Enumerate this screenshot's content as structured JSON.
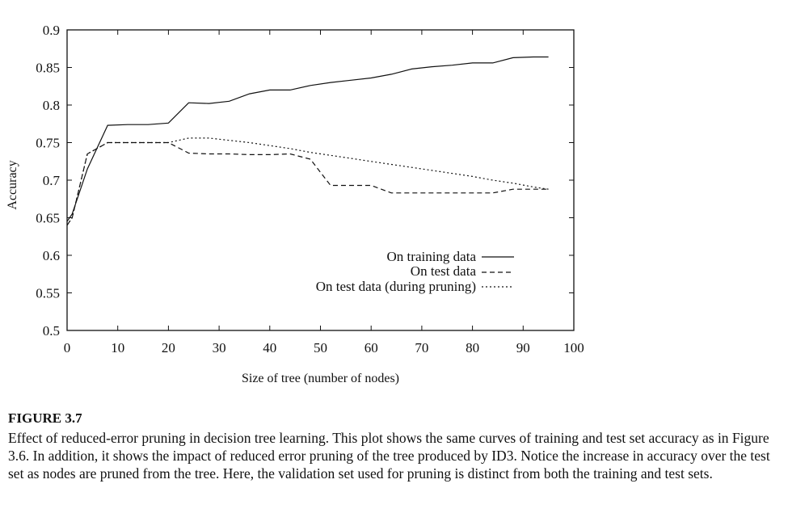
{
  "chart_data": {
    "type": "line",
    "xlabel": "Size of tree (number of nodes)",
    "ylabel": "Accuracy",
    "xlim": [
      0,
      100
    ],
    "ylim": [
      0.5,
      0.9
    ],
    "xticks": [
      "0",
      "10",
      "20",
      "30",
      "40",
      "50",
      "60",
      "70",
      "80",
      "90",
      "100"
    ],
    "yticks": [
      "0.5",
      "0.55",
      "0.6",
      "0.65",
      "0.7",
      "0.75",
      "0.8",
      "0.85",
      "0.9"
    ],
    "grid": false,
    "legend_position": "bottom-right",
    "series": [
      {
        "name": "On training data",
        "style": "solid",
        "points": [
          [
            0,
            0.645
          ],
          [
            1,
            0.655
          ],
          [
            4,
            0.715
          ],
          [
            8,
            0.773
          ],
          [
            12,
            0.774
          ],
          [
            16,
            0.774
          ],
          [
            20,
            0.776
          ],
          [
            24,
            0.803
          ],
          [
            28,
            0.802
          ],
          [
            32,
            0.805
          ],
          [
            36,
            0.815
          ],
          [
            40,
            0.82
          ],
          [
            44,
            0.82
          ],
          [
            48,
            0.826
          ],
          [
            52,
            0.83
          ],
          [
            56,
            0.833
          ],
          [
            60,
            0.836
          ],
          [
            64,
            0.841
          ],
          [
            68,
            0.848
          ],
          [
            72,
            0.851
          ],
          [
            76,
            0.853
          ],
          [
            80,
            0.856
          ],
          [
            84,
            0.856
          ],
          [
            88,
            0.863
          ],
          [
            92,
            0.864
          ],
          [
            95,
            0.864
          ]
        ]
      },
      {
        "name": "On test data",
        "style": "dashed",
        "points": [
          [
            0,
            0.64
          ],
          [
            1,
            0.65
          ],
          [
            4,
            0.735
          ],
          [
            8,
            0.75
          ],
          [
            12,
            0.75
          ],
          [
            16,
            0.75
          ],
          [
            20,
            0.75
          ],
          [
            24,
            0.736
          ],
          [
            28,
            0.735
          ],
          [
            32,
            0.735
          ],
          [
            36,
            0.734
          ],
          [
            40,
            0.734
          ],
          [
            44,
            0.735
          ],
          [
            48,
            0.728
          ],
          [
            52,
            0.693
          ],
          [
            56,
            0.693
          ],
          [
            60,
            0.693
          ],
          [
            64,
            0.683
          ],
          [
            68,
            0.683
          ],
          [
            72,
            0.683
          ],
          [
            76,
            0.683
          ],
          [
            80,
            0.683
          ],
          [
            84,
            0.683
          ],
          [
            88,
            0.688
          ],
          [
            92,
            0.688
          ],
          [
            95,
            0.688
          ]
        ]
      },
      {
        "name": "On test data (during pruning)",
        "style": "dotted",
        "points": [
          [
            0,
            0.64
          ],
          [
            1,
            0.65
          ],
          [
            4,
            0.735
          ],
          [
            8,
            0.75
          ],
          [
            12,
            0.75
          ],
          [
            16,
            0.75
          ],
          [
            20,
            0.75
          ],
          [
            24,
            0.756
          ],
          [
            28,
            0.756
          ],
          [
            32,
            0.753
          ],
          [
            36,
            0.75
          ],
          [
            40,
            0.746
          ],
          [
            44,
            0.742
          ],
          [
            48,
            0.737
          ],
          [
            52,
            0.733
          ],
          [
            56,
            0.729
          ],
          [
            60,
            0.725
          ],
          [
            64,
            0.721
          ],
          [
            68,
            0.717
          ],
          [
            72,
            0.713
          ],
          [
            76,
            0.709
          ],
          [
            80,
            0.705
          ],
          [
            84,
            0.7
          ],
          [
            88,
            0.696
          ],
          [
            92,
            0.691
          ],
          [
            95,
            0.688
          ]
        ]
      }
    ]
  },
  "caption": {
    "label": "FIGURE 3.7",
    "text": "Effect of reduced-error pruning in decision tree learning. This plot shows the same curves of training and test set accuracy as in Figure 3.6. In addition, it shows the impact of reduced error pruning of the tree produced by ID3. Notice the increase in accuracy over the test set as nodes are pruned from the tree. Here, the validation set used for pruning is distinct from both the training and test sets."
  }
}
